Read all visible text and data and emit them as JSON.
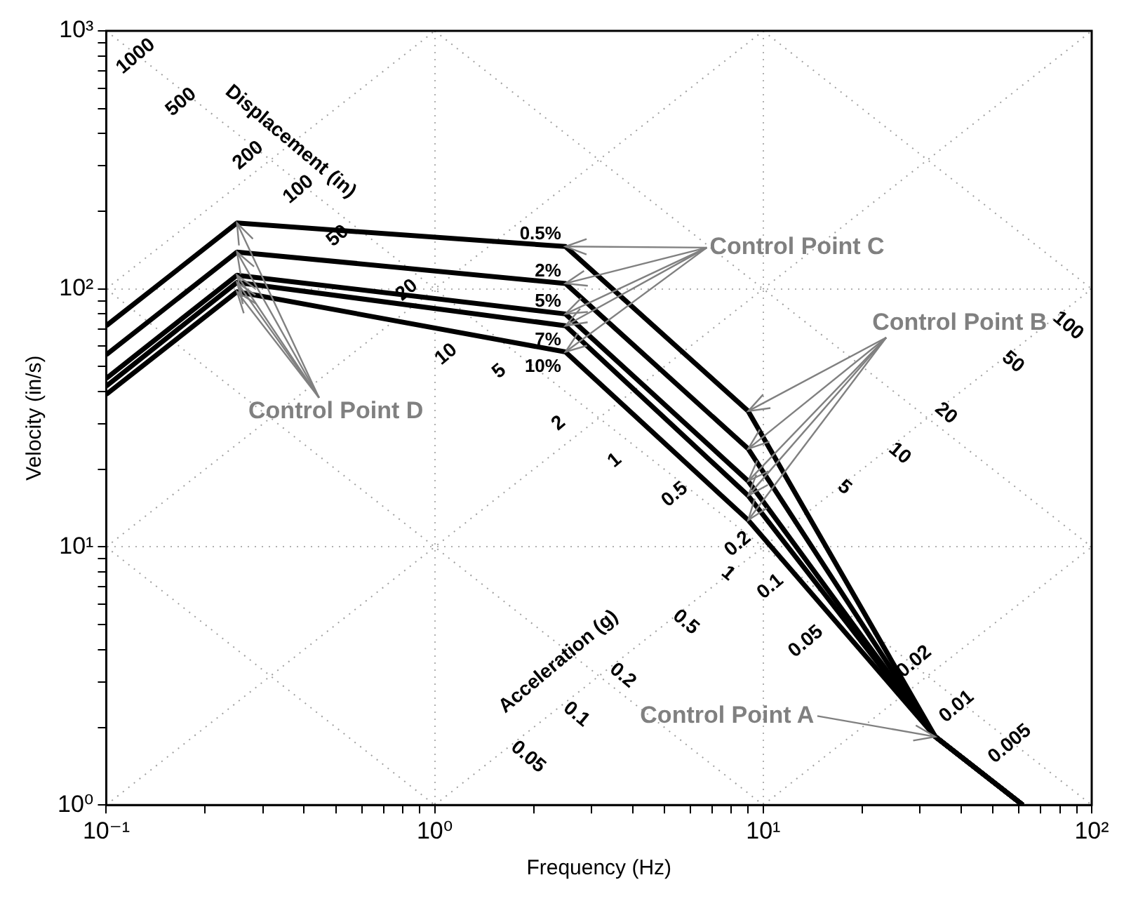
{
  "chart_data": {
    "type": "line",
    "xlabel": "Frequency (Hz)",
    "ylabel": "Velocity (in/s)",
    "x": [
      0.1,
      0.25,
      2.5,
      9,
      33.4,
      61.7
    ],
    "series": [
      {
        "name": "0.5%",
        "color": "#000000",
        "values": [
          72,
          180,
          146,
          33.6,
          1.84,
          1
        ]
      },
      {
        "name": "2%",
        "color": "#000000",
        "values": [
          55.6,
          139,
          105,
          24,
          1.84,
          1
        ]
      },
      {
        "name": "5%",
        "color": "#000000",
        "values": [
          45,
          113,
          80,
          18,
          1.84,
          1
        ]
      },
      {
        "name": "7%",
        "color": "#000000",
        "values": [
          42,
          106,
          72,
          15.8,
          1.84,
          1
        ]
      },
      {
        "name": "10%",
        "color": "#000000",
        "values": [
          39,
          97.5,
          57,
          12.7,
          1.84,
          1
        ]
      },
      {
        "color": "#a0a0a0",
        "line_style": "dotted",
        "x": [
          10,
          100
        ],
        "values": [
          1,
          10
        ]
      },
      {
        "color": "#a0a0a0",
        "line_style": "dotted",
        "x": [
          1,
          100
        ],
        "values": [
          1,
          100
        ]
      },
      {
        "color": "#a0a0a0",
        "line_style": "dotted",
        "x": [
          0.1,
          100
        ],
        "values": [
          1,
          1000
        ]
      },
      {
        "color": "#a0a0a0",
        "line_style": "dotted",
        "x": [
          0.1,
          10
        ],
        "values": [
          10,
          1000
        ]
      },
      {
        "color": "#a0a0a0",
        "line_style": "dotted",
        "x": [
          0.1,
          1
        ],
        "values": [
          100,
          1000
        ]
      },
      {
        "color": "#a0a0a0",
        "line_style": "dotted",
        "x": [
          0.1,
          1
        ],
        "values": [
          10,
          1
        ]
      },
      {
        "color": "#a0a0a0",
        "line_style": "dotted",
        "x": [
          0.1,
          10
        ],
        "values": [
          100,
          1
        ]
      },
      {
        "color": "#a0a0a0",
        "line_style": "dotted",
        "x": [
          0.1,
          100
        ],
        "values": [
          1000,
          1
        ]
      },
      {
        "color": "#a0a0a0",
        "line_style": "dotted",
        "x": [
          1,
          100
        ],
        "values": [
          1000,
          10
        ]
      },
      {
        "color": "#a0a0a0",
        "line_style": "dotted",
        "x": [
          10,
          100
        ],
        "values": [
          1000,
          100
        ]
      }
    ],
    "xlim": [
      0.1,
      100
    ],
    "ylim": [
      1,
      1000
    ],
    "log": "xy",
    "grid": true,
    "legend": false,
    "marker": "none",
    "line_style": "solid",
    "xticks": [
      {
        "value": 0.1,
        "label": "10⁻¹"
      },
      {
        "value": 0.2,
        "label": null
      },
      {
        "value": 0.3,
        "label": null
      },
      {
        "value": 0.4,
        "label": null
      },
      {
        "value": 0.5,
        "label": null
      },
      {
        "value": 0.6,
        "label": null
      },
      {
        "value": 0.7,
        "label": null
      },
      {
        "value": 0.8,
        "label": null
      },
      {
        "value": 0.9,
        "label": null
      },
      {
        "value": 1,
        "label": "10⁰"
      },
      {
        "value": 2,
        "label": null
      },
      {
        "value": 3,
        "label": null
      },
      {
        "value": 4,
        "label": null
      },
      {
        "value": 5,
        "label": null
      },
      {
        "value": 6,
        "label": null
      },
      {
        "value": 7,
        "label": null
      },
      {
        "value": 8,
        "label": null
      },
      {
        "value": 9,
        "label": null
      },
      {
        "value": 10,
        "label": "10¹"
      },
      {
        "value": 20,
        "label": null
      },
      {
        "value": 30,
        "label": null
      },
      {
        "value": 40,
        "label": null
      },
      {
        "value": 50,
        "label": null
      },
      {
        "value": 60,
        "label": null
      },
      {
        "value": 70,
        "label": null
      },
      {
        "value": 80,
        "label": null
      },
      {
        "value": 90,
        "label": null
      },
      {
        "value": 100,
        "label": "10²"
      }
    ],
    "yticks": [
      {
        "value": 1,
        "label": "10⁰"
      },
      {
        "value": 2,
        "label": null
      },
      {
        "value": 3,
        "label": null
      },
      {
        "value": 4,
        "label": null
      },
      {
        "value": 5,
        "label": null
      },
      {
        "value": 6,
        "label": null
      },
      {
        "value": 7,
        "label": null
      },
      {
        "value": 8,
        "label": null
      },
      {
        "value": 9,
        "label": null
      },
      {
        "value": 10,
        "label": "10¹"
      },
      {
        "value": 20,
        "label": null
      },
      {
        "value": 30,
        "label": null
      },
      {
        "value": 40,
        "label": null
      },
      {
        "value": 50,
        "label": null
      },
      {
        "value": 60,
        "label": null
      },
      {
        "value": 70,
        "label": null
      },
      {
        "value": 80,
        "label": null
      },
      {
        "value": 90,
        "label": null
      },
      {
        "value": 100,
        "label": "10²"
      },
      {
        "value": 200,
        "label": null
      },
      {
        "value": 300,
        "label": null
      },
      {
        "value": 400,
        "label": null
      },
      {
        "value": 500,
        "label": null
      },
      {
        "value": 600,
        "label": null
      },
      {
        "value": 700,
        "label": null
      },
      {
        "value": 800,
        "label": null
      },
      {
        "value": 900,
        "label": null
      },
      {
        "value": 1000,
        "label": "10³"
      }
    ],
    "annotations": [
      {
        "text": "Control Point A",
        "x": 33.4,
        "y": 1.84
      },
      {
        "text": "Control Point B",
        "x": 9,
        "y": 33.6
      },
      {
        "text": "Control Point C",
        "x": 2.5,
        "y": 146
      },
      {
        "text": "Control Point D",
        "x": 0.25,
        "y": 180
      },
      "Displacement (in)",
      "1000",
      "500",
      "200",
      "100",
      "50",
      "20",
      "10",
      "5",
      "2",
      "1",
      "0.5",
      "0.2",
      "0.1",
      "0.05",
      "0.02",
      "0.01",
      "0.005",
      "Acceleration (g)",
      "0.05",
      "0.1",
      "0.2",
      "0.5",
      "1",
      "5",
      "10",
      "20",
      "50",
      "100"
    ]
  }
}
